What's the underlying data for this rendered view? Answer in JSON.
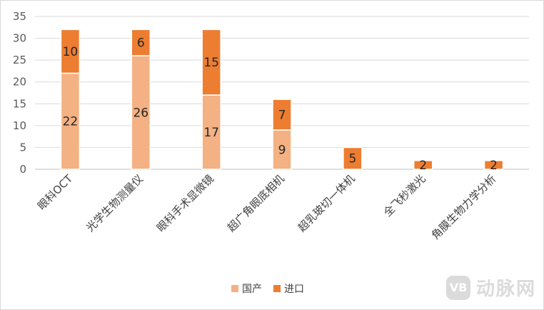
{
  "chart_data": {
    "type": "bar",
    "stacked": true,
    "categories": [
      "眼科OCT",
      "光学生物测量仪",
      "眼科手术显微镜",
      "超广角眼底相机",
      "超乳玻切一体机",
      "全飞秒激光",
      "角膜生物力学分析"
    ],
    "series": [
      {
        "name": "国产",
        "color": "#f4b183",
        "values": [
          22,
          26,
          17,
          9,
          0,
          0,
          0
        ]
      },
      {
        "name": "进口",
        "color": "#ed7d31",
        "values": [
          10,
          6,
          15,
          7,
          5,
          2,
          2
        ]
      }
    ],
    "ylim": [
      0,
      35
    ],
    "yticks": [
      0,
      5,
      10,
      15,
      20,
      25,
      30,
      35
    ],
    "grid": true,
    "legend_position": "bottom"
  },
  "watermark": {
    "logo_text": "VB",
    "text": "动脉网"
  }
}
